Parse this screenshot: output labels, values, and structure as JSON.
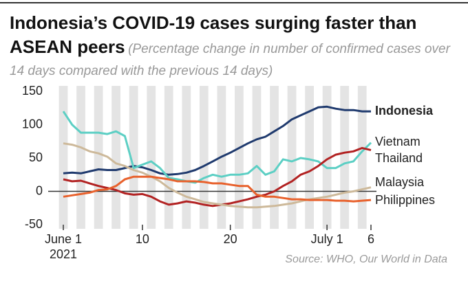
{
  "chart_data": {
    "type": "line",
    "title": "Indonesia’s COVID-19 cases surging faster than ASEAN peers",
    "subtitle": "(Percentage change in number of confirmed cases over 14 days compared with the previous 14 days)",
    "source": "Source: WHO, Our World in Data",
    "x_sublabel": "2021",
    "x": [
      1,
      2,
      3,
      4,
      5,
      6,
      7,
      8,
      9,
      10,
      11,
      12,
      13,
      14,
      15,
      16,
      17,
      18,
      19,
      20,
      21,
      22,
      23,
      24,
      25,
      26,
      27,
      28,
      29,
      30,
      31,
      32,
      33,
      34,
      35,
      36
    ],
    "xlim": [
      1,
      36
    ],
    "xticks": [
      {
        "value": 1,
        "label": "June 1"
      },
      10,
      20,
      {
        "value": 31,
        "label": "July 1"
      },
      {
        "value": 36,
        "label": "6"
      }
    ],
    "ylim": [
      -50,
      150
    ],
    "yticks": [
      -50,
      0,
      50,
      100,
      150
    ],
    "series": [
      {
        "name": "Indonesia",
        "color": "#1f3a6e",
        "bold": true,
        "values": [
          27,
          28,
          27,
          30,
          33,
          32,
          32,
          35,
          38,
          36,
          32,
          27,
          25,
          26,
          28,
          32,
          38,
          45,
          52,
          58,
          65,
          72,
          78,
          82,
          90,
          98,
          108,
          114,
          120,
          126,
          127,
          124,
          122,
          122,
          120,
          120
        ]
      },
      {
        "name": "Vietnam",
        "color": "#5ccfc4",
        "values": [
          120,
          100,
          88,
          88,
          88,
          86,
          90,
          83,
          35,
          40,
          45,
          35,
          20,
          18,
          15,
          13,
          20,
          25,
          22,
          25,
          25,
          27,
          38,
          25,
          30,
          48,
          45,
          50,
          48,
          45,
          35,
          35,
          42,
          45,
          60,
          73
        ]
      },
      {
        "name": "Thailand",
        "color": "#b22222",
        "values": [
          18,
          15,
          16,
          12,
          8,
          5,
          2,
          -3,
          -5,
          -4,
          -8,
          -15,
          -20,
          -18,
          -15,
          -17,
          -20,
          -22,
          -20,
          -18,
          -15,
          -12,
          -8,
          -5,
          0,
          8,
          15,
          25,
          30,
          38,
          48,
          55,
          58,
          60,
          65,
          62
        ]
      },
      {
        "name": "Malaysia",
        "color": "#cdb99a",
        "values": [
          72,
          70,
          66,
          60,
          57,
          52,
          42,
          38,
          32,
          28,
          22,
          15,
          5,
          -2,
          -8,
          -12,
          -16,
          -18,
          -20,
          -22,
          -23,
          -24,
          -24,
          -23,
          -22,
          -20,
          -18,
          -15,
          -12,
          -10,
          -8,
          -5,
          -2,
          0,
          3,
          6
        ]
      },
      {
        "name": "Philippines",
        "color": "#e8612c",
        "values": [
          -8,
          -6,
          -4,
          -2,
          2,
          3,
          8,
          18,
          22,
          22,
          22,
          20,
          18,
          15,
          15,
          15,
          14,
          12,
          12,
          10,
          8,
          8,
          -5,
          -8,
          -8,
          -10,
          -12,
          -12,
          -13,
          -13,
          -13,
          -14,
          -14,
          -15,
          -14,
          -13
        ]
      }
    ]
  }
}
